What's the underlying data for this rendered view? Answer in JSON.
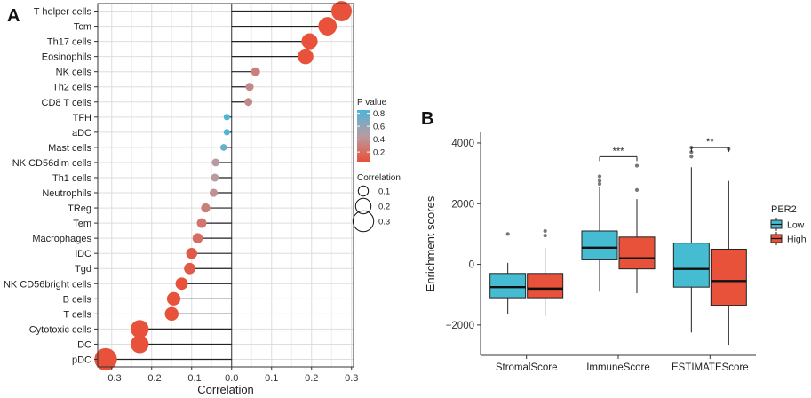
{
  "panel_a_label": "A",
  "panel_b_label": "B",
  "chart_data": [
    {
      "type": "scatter",
      "subtype": "lollipop",
      "xlabel": "Correlation",
      "ylabel": "",
      "xlim": [
        -0.335,
        0.305
      ],
      "xticks": [
        -0.3,
        -0.2,
        -0.1,
        0.0,
        0.1,
        0.2,
        0.3
      ],
      "xtick_labels": [
        "−0.3",
        "−0.2",
        "−0.1",
        "0.0",
        "0.1",
        "0.2",
        "0.3"
      ],
      "grid": true,
      "categories": [
        "T helper cells",
        "Tcm",
        "Th17 cells",
        "Eosinophils",
        "NK cells",
        "Th2 cells",
        "CD8 T cells",
        "TFH",
        "aDC",
        "Mast cells",
        "NK CD56dim cells",
        "Th1 cells",
        "Neutrophils",
        "TReg",
        "Tem",
        "Macrophages",
        "iDC",
        "Tgd",
        "NK CD56bright cells",
        "B cells",
        "T cells",
        "Cytotoxic cells",
        "DC",
        "pDC"
      ],
      "values": [
        0.275,
        0.24,
        0.195,
        0.185,
        0.06,
        0.045,
        0.042,
        -0.012,
        -0.012,
        -0.02,
        -0.04,
        -0.042,
        -0.045,
        -0.065,
        -0.075,
        -0.085,
        -0.1,
        -0.105,
        -0.125,
        -0.145,
        -0.15,
        -0.23,
        -0.23,
        -0.315
      ],
      "p_values": [
        0.0,
        0.0,
        0.0,
        0.0,
        0.3,
        0.35,
        0.35,
        0.85,
        0.85,
        0.75,
        0.45,
        0.45,
        0.4,
        0.3,
        0.25,
        0.2,
        0.1,
        0.1,
        0.05,
        0.02,
        0.02,
        0.0,
        0.0,
        0.0
      ],
      "legend_color": {
        "title": "P value",
        "labels": [
          "0.8",
          "0.6",
          "0.4",
          "0.2"
        ],
        "values": [
          0.8,
          0.6,
          0.4,
          0.2
        ],
        "low_color": "#e8513a",
        "mid_color": "#b89ba1",
        "high_color": "#4fb5d8"
      },
      "legend_size": {
        "title": "Correlation",
        "labels": [
          "0.1",
          "0.2",
          "0.3"
        ],
        "values": [
          0.1,
          0.2,
          0.3
        ]
      }
    },
    {
      "type": "box",
      "xlabel": "",
      "ylabel": "Enrichment scores",
      "ylim": [
        -3000,
        4350
      ],
      "yticks": [
        -2000,
        0,
        2000,
        4000
      ],
      "ytick_labels": [
        "−2000",
        "0",
        "2000",
        "4000"
      ],
      "categories": [
        "StromalScore",
        "ImmuneScore",
        "ESTIMATEScore"
      ],
      "legend": {
        "title": "PER2",
        "labels": [
          "Low",
          "High"
        ],
        "colors": [
          "#45bcd1",
          "#e8513a"
        ]
      },
      "series": [
        {
          "name": "Low",
          "color": "#45bcd1",
          "boxes": [
            {
              "min": -1650,
              "q1": -1100,
              "median": -750,
              "q3": -300,
              "max": 50,
              "outliers": [
                1000
              ]
            },
            {
              "min": -900,
              "q1": 150,
              "median": 550,
              "q3": 1100,
              "max": 2550,
              "outliers": [
                2650,
                2750,
                2900
              ]
            },
            {
              "min": -2250,
              "q1": -750,
              "median": -150,
              "q3": 700,
              "max": 3200,
              "outliers": [
                3550,
                3700,
                3850
              ]
            }
          ]
        },
        {
          "name": "High",
          "color": "#e8513a",
          "boxes": [
            {
              "min": -1700,
              "q1": -1100,
              "median": -800,
              "q3": -300,
              "max": 550,
              "outliers": [
                950,
                1100
              ]
            },
            {
              "min": -950,
              "q1": -150,
              "median": 200,
              "q3": 900,
              "max": 2150,
              "outliers": [
                2450,
                3250
              ]
            },
            {
              "min": -2650,
              "q1": -1350,
              "median": -550,
              "q3": 500,
              "max": 2750,
              "outliers": [
                3800
              ]
            }
          ]
        }
      ],
      "significance": [
        {
          "category": "ImmuneScore",
          "label": "***",
          "y": 3550
        },
        {
          "category": "ESTIMATEScore",
          "label": "**",
          "y": 3850
        }
      ]
    }
  ]
}
